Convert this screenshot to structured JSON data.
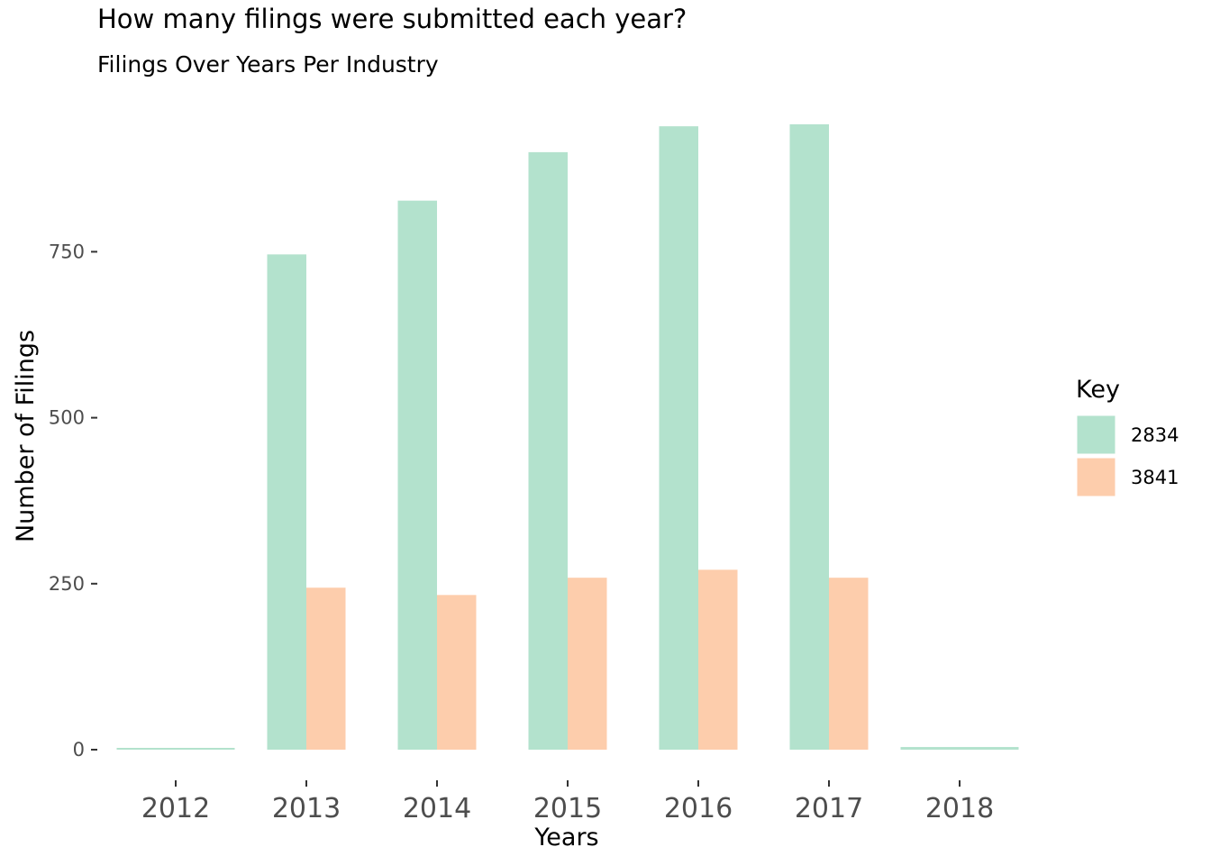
{
  "chart_data": {
    "type": "bar",
    "title": "How many filings were submitted each year?",
    "subtitle": "Filings Over Years Per Industry",
    "xlabel": "Years",
    "ylabel": "Number of Filings",
    "categories": [
      "2012",
      "2013",
      "2014",
      "2015",
      "2016",
      "2017",
      "2018"
    ],
    "series": [
      {
        "name": "2834",
        "color": "#b3e2cd",
        "values": [
          1,
          746,
          827,
          900,
          939,
          942,
          4
        ]
      },
      {
        "name": "3841",
        "color": "#fdcdac",
        "values": [
          0,
          244,
          233,
          259,
          271,
          259,
          0
        ]
      }
    ],
    "yticks": [
      0,
      250,
      500,
      750
    ],
    "ytick_labels": [
      "0",
      "250",
      "500",
      "750"
    ],
    "ylim": [
      0,
      942
    ],
    "grid": false,
    "legend": {
      "title": "Key",
      "placement": "right"
    }
  }
}
